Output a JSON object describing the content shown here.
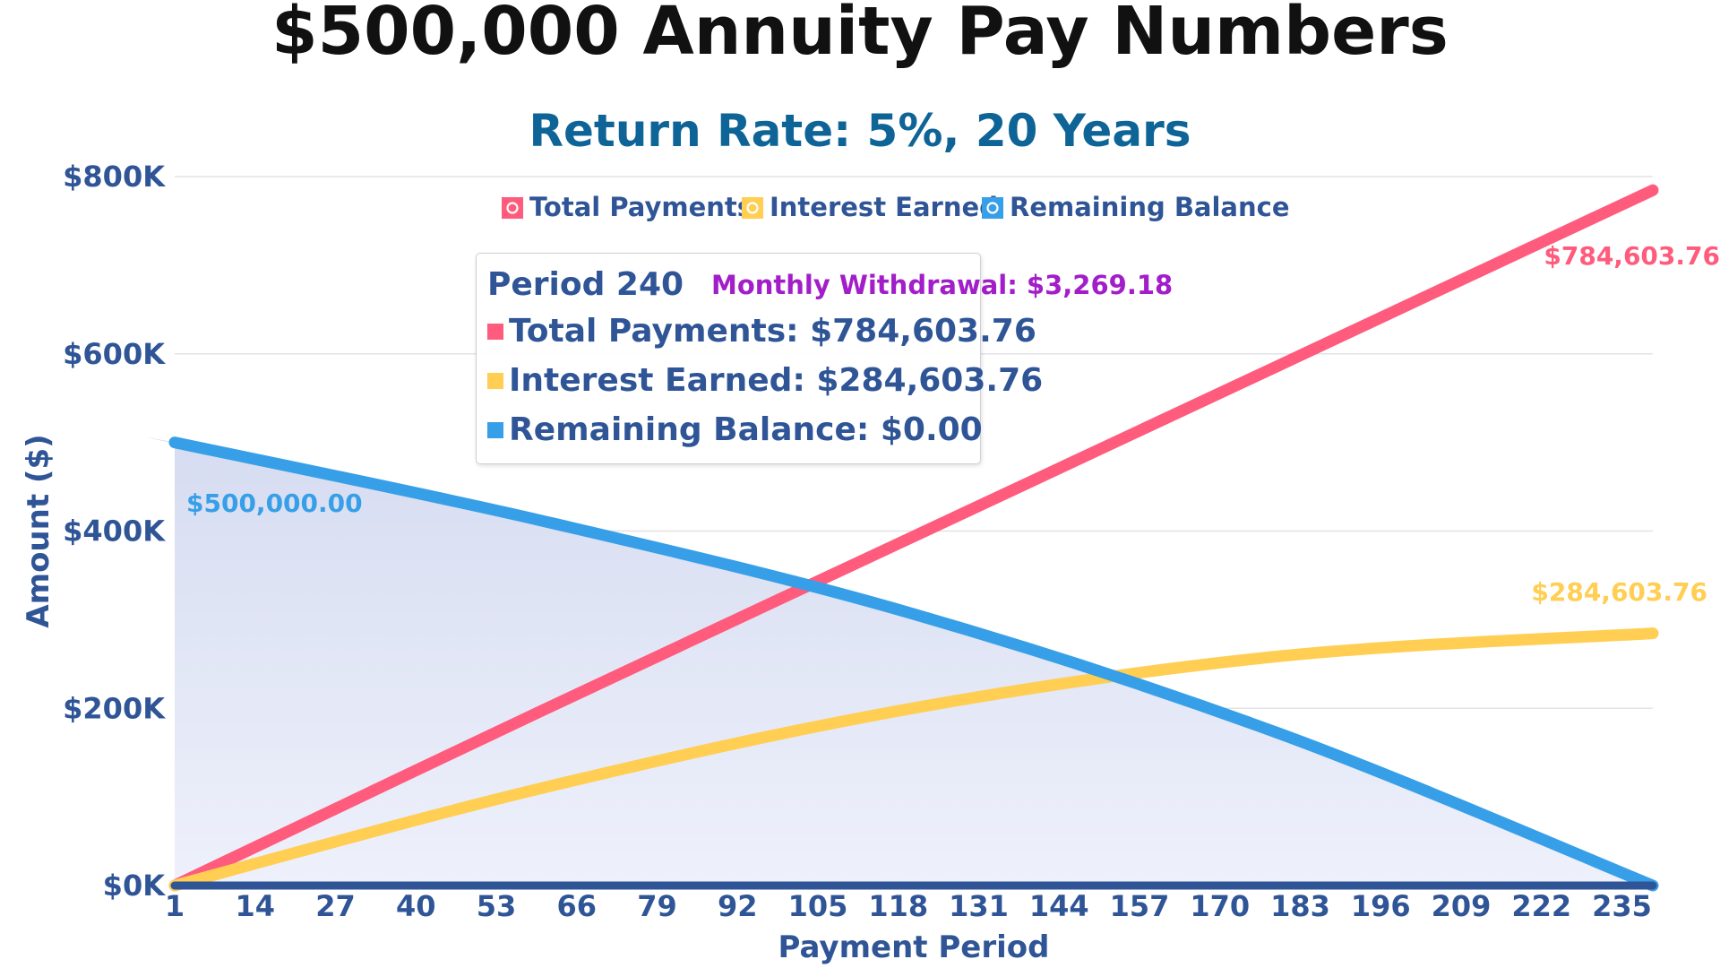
{
  "chart_data": {
    "type": "line",
    "title": "$500,000 Annuity Pay Numbers",
    "subtitle": "Return Rate: 5%, 20 Years",
    "xlabel": "Payment Period",
    "ylabel": "Amount ($)",
    "x_ticks": [
      "1",
      "14",
      "27",
      "40",
      "53",
      "66",
      "79",
      "92",
      "105",
      "118",
      "131",
      "144",
      "157",
      "170",
      "183",
      "196",
      "209",
      "222",
      "235"
    ],
    "y_ticks": [
      "$0K",
      "$200K",
      "$400K",
      "$600K",
      "$800K"
    ],
    "xlim": [
      1,
      240
    ],
    "ylim": [
      0,
      800000
    ],
    "grid": "horizontal",
    "legend_position": "top",
    "principal": 500000,
    "rate": 0.05,
    "periods": 240,
    "monthly_withdrawal": 3269.18,
    "series": [
      {
        "name": "Total Payments",
        "color": "#ff5b7c",
        "points": [
          [
            1,
            3269.18
          ],
          [
            60,
            196150.8
          ],
          [
            120,
            392301.6
          ],
          [
            180,
            588452.4
          ],
          [
            240,
            784603.76
          ]
        ],
        "end_label": "$784,603.76"
      },
      {
        "name": "Interest Earned",
        "color": "#ffce52",
        "points": [
          [
            1,
            2083.33
          ],
          [
            60,
            109375
          ],
          [
            120,
            199650
          ],
          [
            180,
            258970
          ],
          [
            240,
            284603.76
          ]
        ],
        "end_label": "$284,603.76"
      },
      {
        "name": "Remaining Balance",
        "color": "#379fe8",
        "fill": "#dfe4f5",
        "points": [
          [
            1,
            498814.15
          ],
          [
            60,
            412225
          ],
          [
            120,
            307350
          ],
          [
            180,
            170520
          ],
          [
            240,
            0
          ]
        ],
        "start_label": "$500,000.00"
      }
    ],
    "tooltip": {
      "period": "Period 240",
      "withdrawal": "Monthly Withdrawal: $3,269.18",
      "rows": [
        {
          "text": "Total Payments: $784,603.76",
          "color": "#ff5b7c"
        },
        {
          "text": "Interest Earned: $284,603.76",
          "color": "#ffce52"
        },
        {
          "text": "Remaining Balance: $0.00",
          "color": "#379fe8"
        }
      ]
    }
  }
}
